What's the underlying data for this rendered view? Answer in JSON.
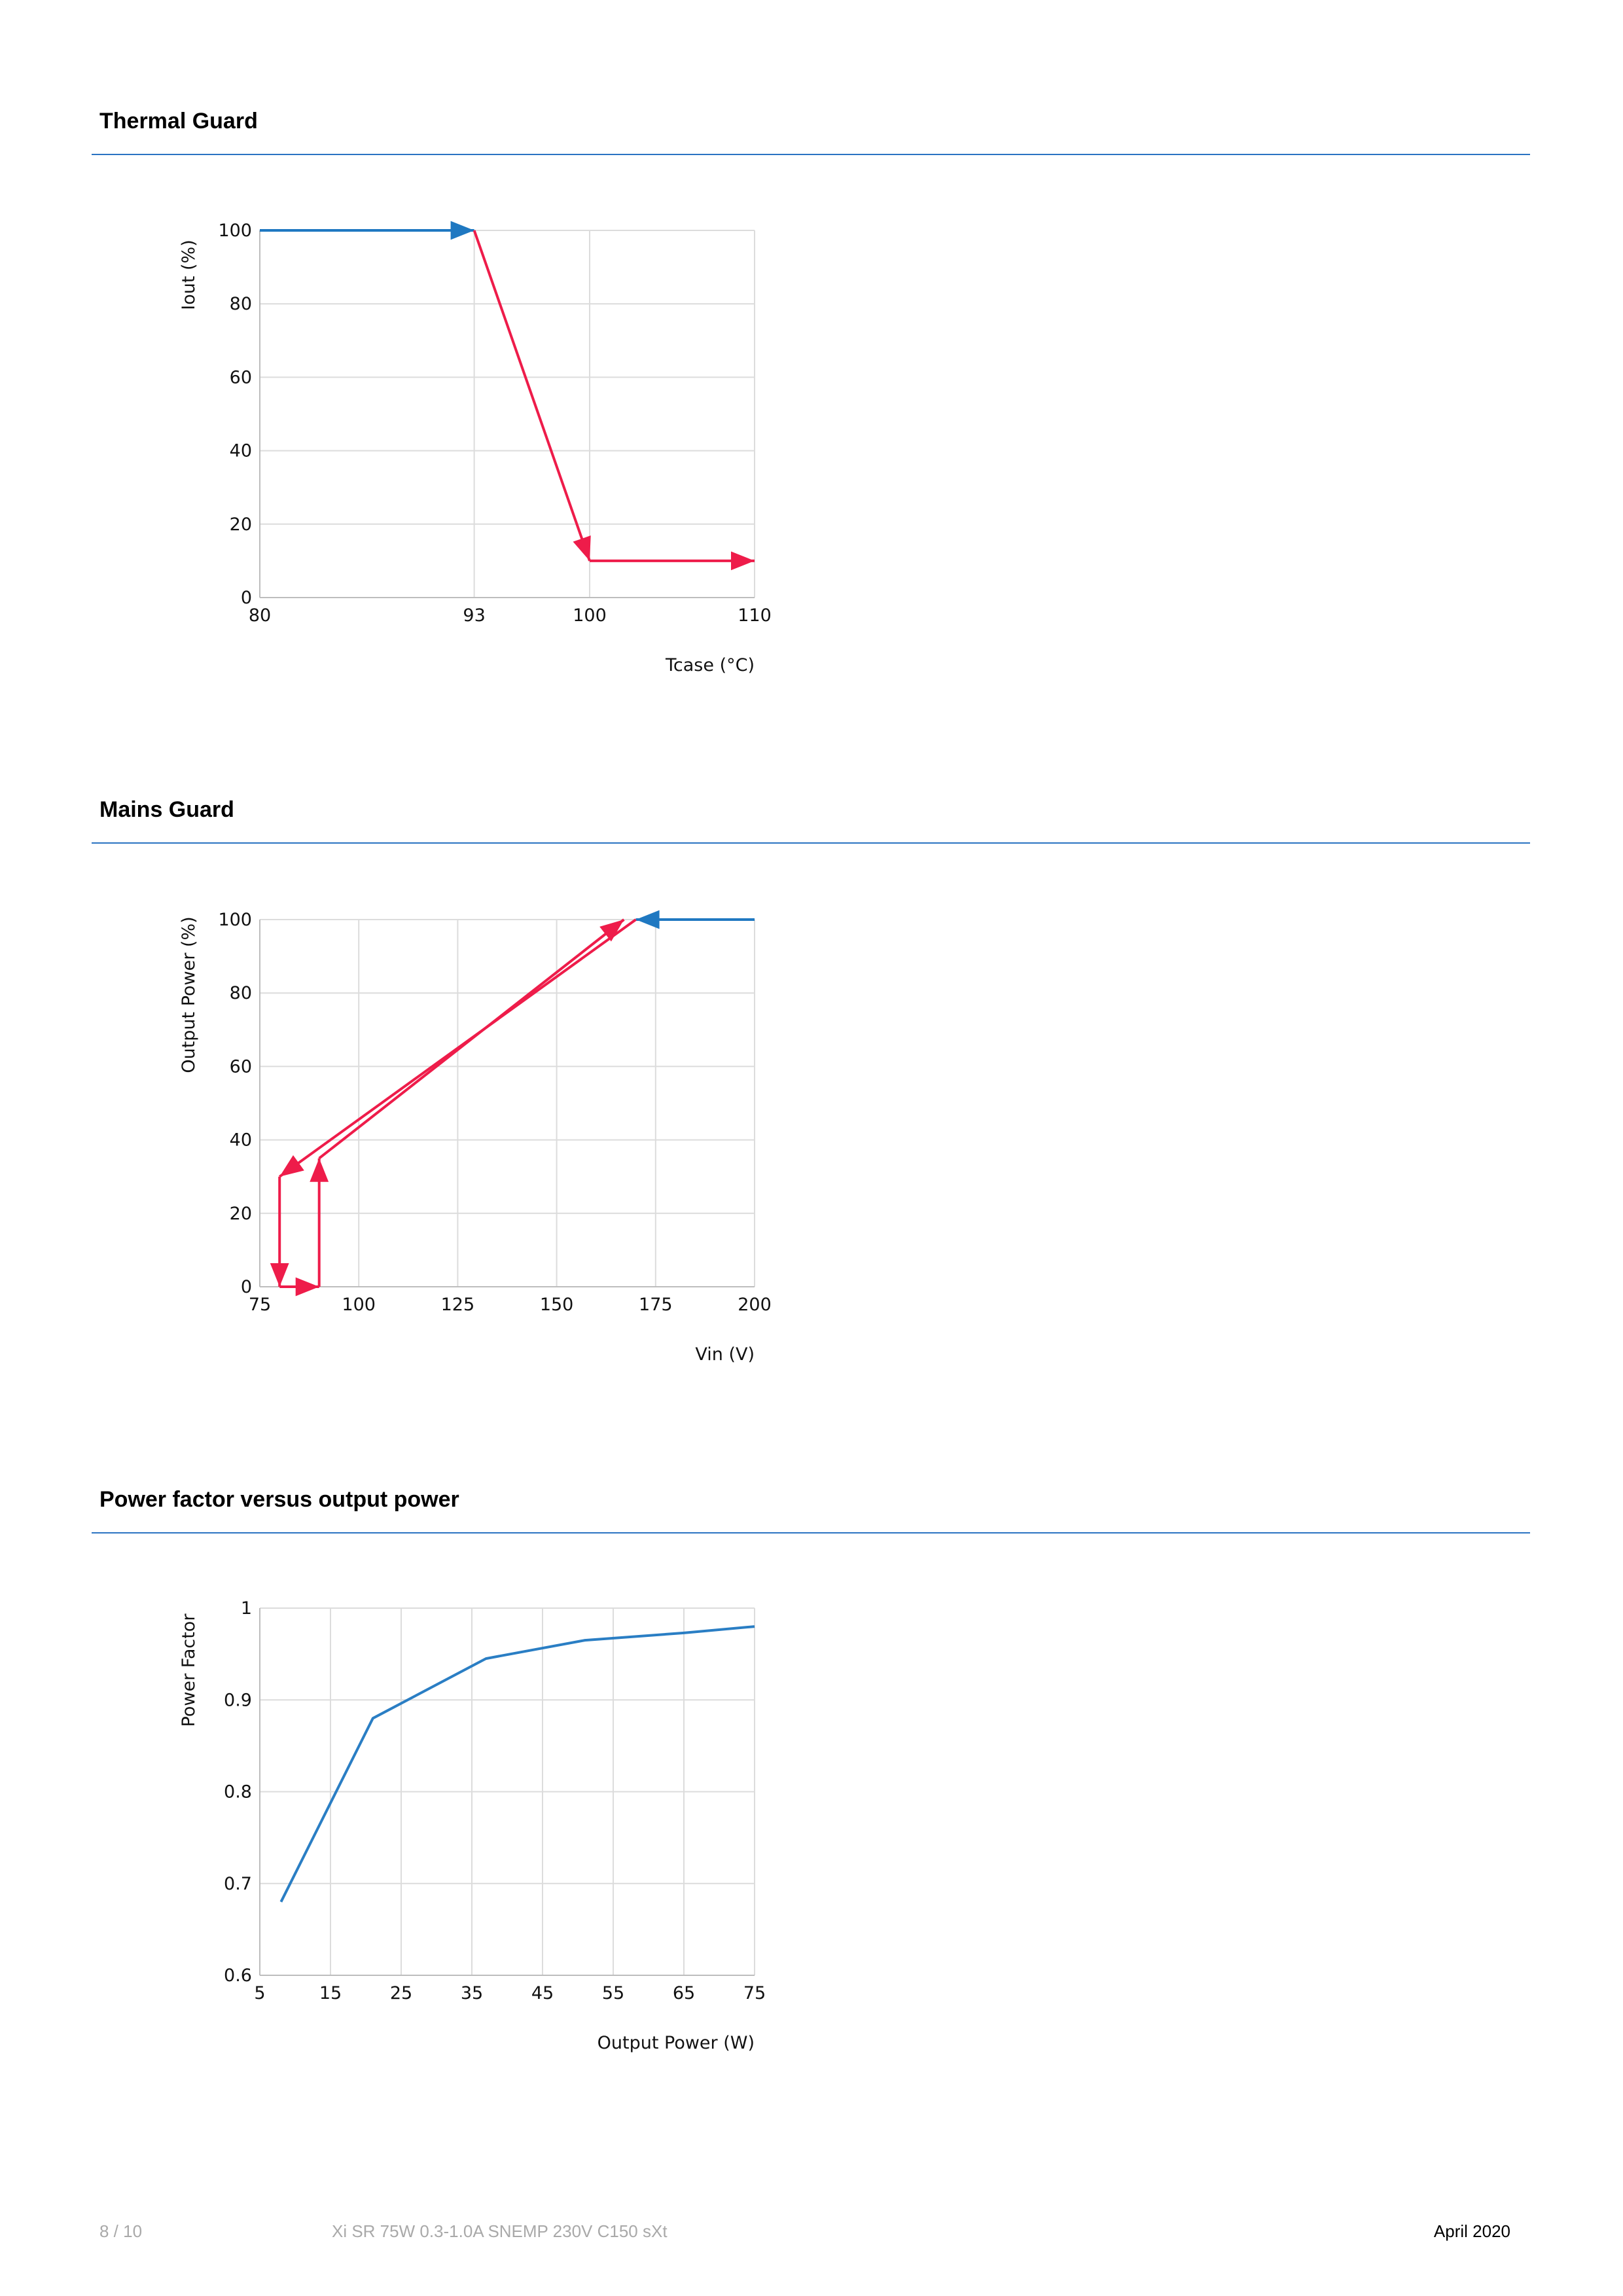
{
  "sections": [
    {
      "title": "Thermal Guard"
    },
    {
      "title": "Mains Guard"
    },
    {
      "title": "Power factor versus output power"
    }
  ],
  "chart_data": [
    {
      "type": "line",
      "title": "Thermal Guard",
      "xlabel": "Tcase (°C)",
      "ylabel": "Iout (%)",
      "xlim": [
        80,
        110
      ],
      "ylim": [
        0,
        100
      ],
      "xticks": [
        80,
        93,
        100,
        110
      ],
      "yticks": [
        0,
        20,
        40,
        60,
        80,
        100
      ],
      "grid": true,
      "series": [
        {
          "color": "#1f78c1",
          "arrow": true,
          "x": [
            80,
            93
          ],
          "y": [
            100,
            100
          ]
        },
        {
          "color": "#ee1c4a",
          "arrow": true,
          "x": [
            93,
            100
          ],
          "y": [
            100,
            10
          ]
        },
        {
          "color": "#ee1c4a",
          "arrow": true,
          "x": [
            100,
            110
          ],
          "y": [
            10,
            10
          ]
        }
      ]
    },
    {
      "type": "line",
      "title": "Mains Guard",
      "xlabel": "Vin (V)",
      "ylabel": "Output Power (%)",
      "xlim": [
        75,
        200
      ],
      "ylim": [
        0,
        100
      ],
      "xticks": [
        75,
        100,
        125,
        150,
        175,
        200
      ],
      "yticks": [
        0,
        20,
        40,
        60,
        80,
        100
      ],
      "grid": true,
      "series": [
        {
          "color": "#1f78c1",
          "arrow": true,
          "x": [
            200,
            170
          ],
          "y": [
            100,
            100
          ]
        },
        {
          "color": "#ee1c4a",
          "arrow": true,
          "x": [
            170,
            80
          ],
          "y": [
            100,
            30
          ]
        },
        {
          "color": "#ee1c4a",
          "arrow": true,
          "x": [
            80,
            80
          ],
          "y": [
            30,
            0
          ]
        },
        {
          "color": "#ee1c4a",
          "arrow": true,
          "x": [
            80,
            90
          ],
          "y": [
            0,
            0
          ]
        },
        {
          "color": "#ee1c4a",
          "arrow": true,
          "x": [
            90,
            90
          ],
          "y": [
            0,
            35
          ]
        },
        {
          "color": "#ee1c4a",
          "arrow": true,
          "x": [
            90,
            167
          ],
          "y": [
            35,
            100
          ]
        }
      ]
    },
    {
      "type": "line",
      "title": "Power factor versus output power",
      "xlabel": "Output Power (W)",
      "ylabel": "Power Factor",
      "xlim": [
        5,
        75
      ],
      "ylim": [
        0.6,
        1
      ],
      "xticks": [
        5,
        15,
        25,
        35,
        45,
        55,
        65,
        75
      ],
      "yticks": [
        0.6,
        0.7,
        0.8,
        0.9,
        1
      ],
      "ytick_labels": [
        "0.6",
        "0.7",
        "0.8",
        "0.9",
        "1"
      ],
      "grid": true,
      "series": [
        {
          "color": "#2a7ec4",
          "arrow": false,
          "x": [
            8,
            21,
            37,
            51,
            65,
            75
          ],
          "y": [
            0.68,
            0.88,
            0.945,
            0.965,
            0.973,
            0.98
          ]
        }
      ]
    }
  ],
  "footer": {
    "page": "8 / 10",
    "product": "Xi SR 75W 0.3-1.0A SNEMP 230V C150 sXt",
    "date": "April 2020"
  }
}
